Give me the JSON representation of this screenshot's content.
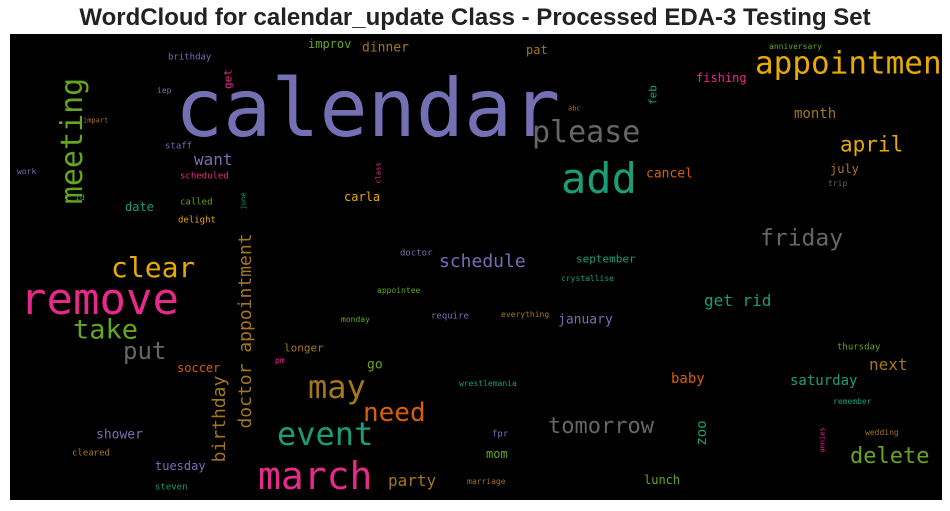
{
  "title": "WordCloud for calendar_update Class - Processed EDA-3 Testing Set",
  "colors": {
    "background": "#000000",
    "palette": [
      "#7570b3",
      "#1b9e77",
      "#d95f02",
      "#e7298a",
      "#66a61e",
      "#e6ab02",
      "#a6761d",
      "#666666"
    ]
  },
  "chart_data": {
    "type": "wordcloud",
    "title": "WordCloud for calendar_update Class - Processed EDA-3 Testing Set",
    "words": [
      {
        "text": "calendar",
        "weight": 100,
        "color": "#7570b3",
        "vertical": false
      },
      {
        "text": "remove",
        "weight": 62,
        "color": "#e7298a",
        "vertical": false
      },
      {
        "text": "add",
        "weight": 58,
        "color": "#1b9e77",
        "vertical": false
      },
      {
        "text": "march",
        "weight": 55,
        "color": "#e7298a",
        "vertical": false
      },
      {
        "text": "appointment",
        "weight": 45,
        "color": "#e6ab02",
        "vertical": false
      },
      {
        "text": "meeting",
        "weight": 44,
        "color": "#66a61e",
        "vertical": true
      },
      {
        "text": "event",
        "weight": 44,
        "color": "#1b9e77",
        "vertical": false
      },
      {
        "text": "may",
        "weight": 42,
        "color": "#a6761d",
        "vertical": false
      },
      {
        "text": "please",
        "weight": 40,
        "color": "#666666",
        "vertical": false
      },
      {
        "text": "clear",
        "weight": 37,
        "color": "#e6ab02",
        "vertical": false
      },
      {
        "text": "take",
        "weight": 35,
        "color": "#66a61e",
        "vertical": false
      },
      {
        "text": "need",
        "weight": 33,
        "color": "#d95f02",
        "vertical": false
      },
      {
        "text": "friday",
        "weight": 32,
        "color": "#666666",
        "vertical": false
      },
      {
        "text": "put",
        "weight": 31,
        "color": "#666666",
        "vertical": false
      },
      {
        "text": "april",
        "weight": 29,
        "color": "#e6ab02",
        "vertical": false
      },
      {
        "text": "doctor appointment",
        "weight": 28,
        "color": "#a6761d",
        "vertical": true
      },
      {
        "text": "tomorrow",
        "weight": 28,
        "color": "#666666",
        "vertical": false
      },
      {
        "text": "delete",
        "weight": 28,
        "color": "#66a61e",
        "vertical": false
      },
      {
        "text": "birthday",
        "weight": 25,
        "color": "#a6761d",
        "vertical": true
      },
      {
        "text": "schedule",
        "weight": 24,
        "color": "#7570b3",
        "vertical": false
      },
      {
        "text": "want",
        "weight": 21,
        "color": "#7570b3",
        "vertical": false
      },
      {
        "text": "get rid",
        "weight": 21,
        "color": "#1b9e77",
        "vertical": false
      },
      {
        "text": "party",
        "weight": 21,
        "color": "#a6761d",
        "vertical": false
      },
      {
        "text": "next",
        "weight": 21,
        "color": "#a6761d",
        "vertical": false
      },
      {
        "text": "month",
        "weight": 19,
        "color": "#a6761d",
        "vertical": false
      },
      {
        "text": "saturday",
        "weight": 19,
        "color": "#1b9e77",
        "vertical": false
      },
      {
        "text": "baby",
        "weight": 18,
        "color": "#d95f02",
        "vertical": false
      },
      {
        "text": "zoo",
        "weight": 18,
        "color": "#1b9e77",
        "vertical": true
      },
      {
        "text": "dinner",
        "weight": 17,
        "color": "#a6761d",
        "vertical": false
      },
      {
        "text": "cancel",
        "weight": 17,
        "color": "#d95f02",
        "vertical": false
      },
      {
        "text": "shower",
        "weight": 17,
        "color": "#7570b3",
        "vertical": false
      },
      {
        "text": "january",
        "weight": 17,
        "color": "#7570b3",
        "vertical": false
      },
      {
        "text": "go",
        "weight": 16,
        "color": "#66a61e",
        "vertical": false
      },
      {
        "text": "tuesday",
        "weight": 15,
        "color": "#7570b3",
        "vertical": false
      },
      {
        "text": "improv",
        "weight": 14,
        "color": "#66a61e",
        "vertical": false
      },
      {
        "text": "soccer",
        "weight": 14,
        "color": "#d95f02",
        "vertical": false
      },
      {
        "text": "lunch",
        "weight": 14,
        "color": "#66a61e",
        "vertical": false
      },
      {
        "text": "carla",
        "weight": 14,
        "color": "#e6ab02",
        "vertical": false
      },
      {
        "text": "date",
        "weight": 14,
        "color": "#1b9e77",
        "vertical": false
      },
      {
        "text": "mom",
        "weight": 14,
        "color": "#66a61e",
        "vertical": false
      },
      {
        "text": "july",
        "weight": 14,
        "color": "#a6761d",
        "vertical": false
      },
      {
        "text": "pat",
        "weight": 13,
        "color": "#a6761d",
        "vertical": false
      },
      {
        "text": "fishing",
        "weight": 13,
        "color": "#e7298a",
        "vertical": false
      },
      {
        "text": "longer",
        "weight": 13,
        "color": "#a6761d",
        "vertical": false
      },
      {
        "text": "september",
        "weight": 13,
        "color": "#1b9e77",
        "vertical": false
      },
      {
        "text": "feb",
        "weight": 12,
        "color": "#1b9e77",
        "vertical": true
      },
      {
        "text": "get",
        "weight": 11,
        "color": "#e7298a",
        "vertical": true
      },
      {
        "text": "called",
        "weight": 10,
        "color": "#66a61e",
        "vertical": false
      },
      {
        "text": "staff",
        "weight": 10,
        "color": "#7570b3",
        "vertical": false
      },
      {
        "text": "thursday",
        "weight": 10,
        "color": "#66a61e",
        "vertical": false
      },
      {
        "text": "brithday",
        "weight": 10,
        "color": "#7570b3",
        "vertical": false
      },
      {
        "text": "delight",
        "weight": 10,
        "color": "#e6ab02",
        "vertical": false
      },
      {
        "text": "scheduled",
        "weight": 10,
        "color": "#e7298a",
        "vertical": false
      },
      {
        "text": "doctor",
        "weight": 10,
        "color": "#7570b3",
        "vertical": false
      },
      {
        "text": "require",
        "weight": 10,
        "color": "#7570b3",
        "vertical": false
      },
      {
        "text": "fpr",
        "weight": 10,
        "color": "#7570b3",
        "vertical": false
      },
      {
        "text": "steven",
        "weight": 10,
        "color": "#1b9e77",
        "vertical": false
      },
      {
        "text": "cleared",
        "weight": 10,
        "color": "#a6761d",
        "vertical": false
      },
      {
        "text": "anniversary",
        "weight": 9,
        "color": "#66a61e",
        "vertical": false
      },
      {
        "text": "wedding",
        "weight": 9,
        "color": "#a6761d",
        "vertical": false
      },
      {
        "text": "remember",
        "weight": 9,
        "color": "#1b9e77",
        "vertical": false
      },
      {
        "text": "appointee",
        "weight": 9,
        "color": "#66a61e",
        "vertical": false
      },
      {
        "text": "crystallise",
        "weight": 9,
        "color": "#1b9e77",
        "vertical": false
      },
      {
        "text": "everything",
        "weight": 9,
        "color": "#a6761d",
        "vertical": false
      },
      {
        "text": "monday",
        "weight": 9,
        "color": "#66a61e",
        "vertical": false
      },
      {
        "text": "wrestlemania",
        "weight": 9,
        "color": "#1b9e77",
        "vertical": false
      },
      {
        "text": "marriage",
        "weight": 9,
        "color": "#a6761d",
        "vertical": false
      },
      {
        "text": "pm",
        "weight": 9,
        "color": "#e7298a",
        "vertical": false
      },
      {
        "text": "trip",
        "weight": 9,
        "color": "#666666",
        "vertical": false
      },
      {
        "text": "work",
        "weight": 9,
        "color": "#7570b3",
        "vertical": false
      },
      {
        "text": "iep",
        "weight": 9,
        "color": "#7570b3",
        "vertical": false
      },
      {
        "text": "impart",
        "weight": 8,
        "color": "#a6761d",
        "vertical": false
      },
      {
        "text": "id",
        "weight": 9,
        "color": "#1b9e77",
        "vertical": false
      },
      {
        "text": "abc",
        "weight": 8,
        "color": "#d95f02",
        "vertical": false
      },
      {
        "text": "class",
        "weight": 8,
        "color": "#e7298a",
        "vertical": true
      },
      {
        "text": "june",
        "weight": 8,
        "color": "#1b9e77",
        "vertical": true
      },
      {
        "text": "annies",
        "weight": 8,
        "color": "#e7298a",
        "vertical": true
      }
    ]
  }
}
